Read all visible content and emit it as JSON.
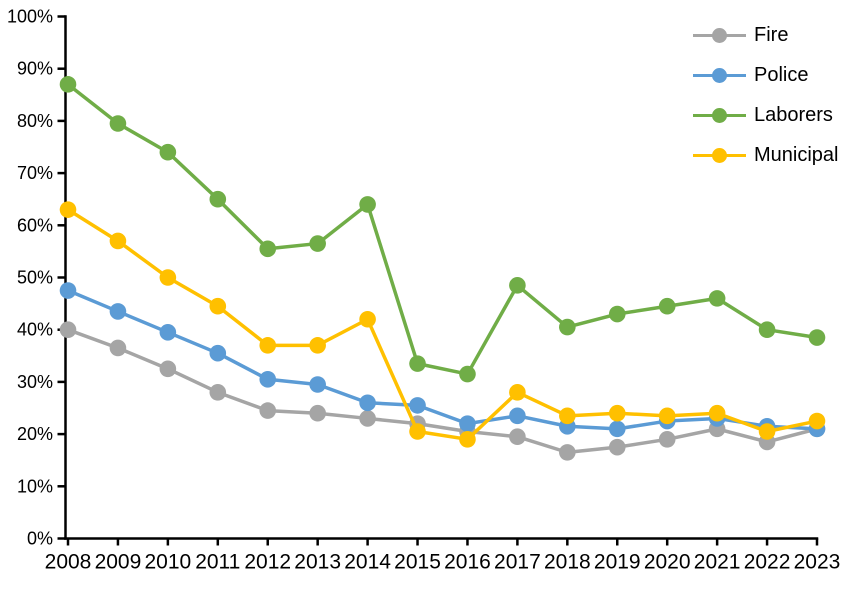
{
  "chart_data": {
    "type": "line",
    "title": "",
    "x_categories": [
      "2008",
      "2009",
      "2010",
      "2011",
      "2012",
      "2013",
      "2014",
      "2015",
      "2016",
      "2017",
      "2018",
      "2019",
      "2020",
      "2021",
      "2022",
      "2023"
    ],
    "series": [
      {
        "name": "Fire",
        "color": "#A5A5A5",
        "values": [
          40,
          36.5,
          32.5,
          28,
          24.5,
          24,
          23,
          22,
          20.5,
          19.5,
          16.5,
          17.5,
          19,
          21,
          18.5,
          21
        ]
      },
      {
        "name": "Police",
        "color": "#5B9BD5",
        "values": [
          47.5,
          43.5,
          39.5,
          35.5,
          30.5,
          29.5,
          26,
          25.5,
          22,
          23.5,
          21.5,
          21,
          22.5,
          23,
          21.5,
          21
        ]
      },
      {
        "name": "Laborers",
        "color": "#70AD47",
        "values": [
          87,
          79.5,
          74,
          65,
          55.5,
          56.5,
          64,
          33.5,
          31.5,
          48.5,
          40.5,
          43,
          44.5,
          46,
          40,
          38.5
        ]
      },
      {
        "name": "Municipal",
        "color": "#FFC000",
        "values": [
          63,
          57,
          50,
          44.5,
          37,
          37,
          42,
          20.5,
          19,
          28,
          23.5,
          24,
          23.5,
          24,
          20.5,
          22.5
        ]
      }
    ],
    "ylim": [
      0,
      100
    ],
    "ytick_step": 10,
    "y_tick_labels": [
      "0%",
      "10%",
      "20%",
      "30%",
      "40%",
      "50%",
      "60%",
      "70%",
      "80%",
      "90%",
      "100%"
    ],
    "grid": false,
    "legend_position": "top-right",
    "axis_color": "#000000",
    "background": "#FFFFFF"
  }
}
